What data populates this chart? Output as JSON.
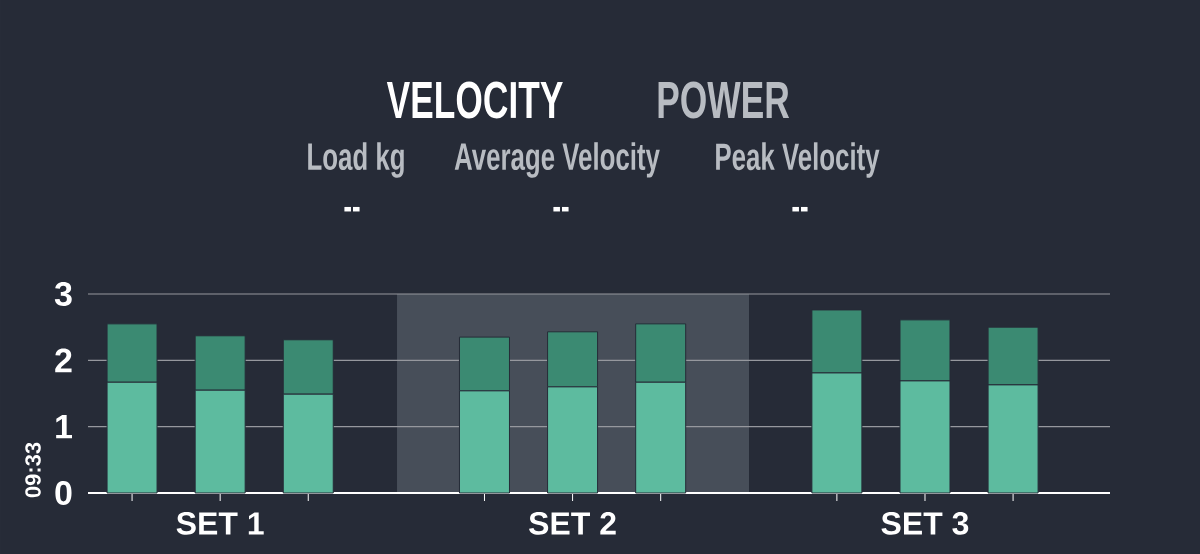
{
  "chart_data": {
    "type": "bar",
    "stacked": true,
    "title": "VELOCITY",
    "annotations": [
      "POWER",
      "Load kg",
      "--",
      "Average Velocity",
      "--",
      "Peak Velocity",
      "--",
      "09:33"
    ],
    "categories": [
      null,
      "SET 1",
      null,
      null,
      null,
      "SET 2",
      null,
      null,
      null,
      "SET 3",
      null
    ],
    "series": [
      {
        "color": "#5dbb9f",
        "values": [
          1.67,
          1.55,
          1.49,
          null,
          1.54,
          1.6,
          1.67,
          null,
          1.81,
          1.69,
          1.63
        ]
      },
      {
        "color": "#3b8a72",
        "values": [
          0.88,
          0.82,
          0.82,
          null,
          0.81,
          0.83,
          0.88,
          null,
          0.95,
          0.92,
          0.87
        ]
      }
    ],
    "ylim": [
      0,
      3
    ],
    "yticks": [
      0,
      1,
      2,
      3
    ],
    "grid": "y"
  }
}
